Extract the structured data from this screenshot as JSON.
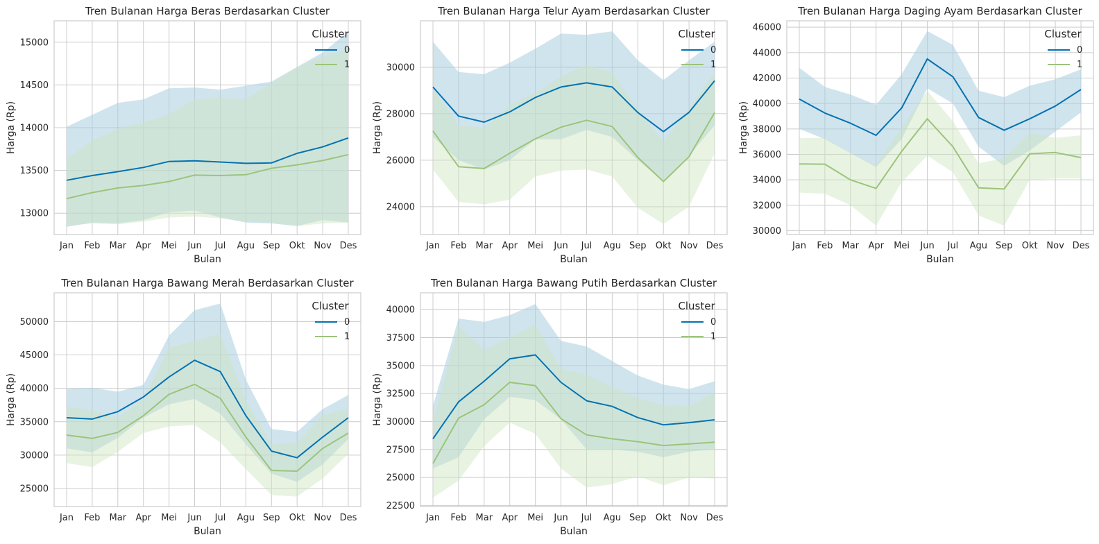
{
  "figure": {
    "background": "#ffffff",
    "plot_background": "#ffffff",
    "grid_color": "#cccccc",
    "spine_color": "#cccccc",
    "series_colors": [
      "#0072b2",
      "#9bc47b"
    ],
    "band_colors": [
      "#a9cde0",
      "#cfe5bf"
    ]
  },
  "chart_data": [
    {
      "type": "line",
      "title": "Tren Bulanan Harga Beras Berdasarkan Cluster",
      "xlabel": "Bulan",
      "ylabel": "Harga (Rp)",
      "categories": [
        "Jan",
        "Feb",
        "Mar",
        "Apr",
        "Mei",
        "Jun",
        "Jul",
        "Agu",
        "Sep",
        "Okt",
        "Nov",
        "Des"
      ],
      "ylim": [
        12750,
        15250
      ],
      "yticks": [
        13000,
        13500,
        14000,
        14500,
        15000
      ],
      "grid": true,
      "legend": {
        "title": "Cluster",
        "position": "top-right"
      },
      "series": [
        {
          "name": "0",
          "values": [
            13385,
            13440,
            13485,
            13535,
            13605,
            13612,
            13598,
            13583,
            13588,
            13700,
            13775,
            13880
          ],
          "ci_low": [
            12840,
            12890,
            12880,
            12920,
            13010,
            13030,
            12950,
            12890,
            12880,
            12850,
            12920,
            12890
          ],
          "ci_high": [
            14010,
            14150,
            14290,
            14330,
            14460,
            14470,
            14445,
            14490,
            14540,
            14710,
            14880,
            15120
          ]
        },
        {
          "name": "1",
          "values": [
            13170,
            13240,
            13295,
            13325,
            13370,
            13445,
            13440,
            13450,
            13525,
            13565,
            13615,
            13685
          ],
          "ci_low": [
            12850,
            12880,
            12870,
            12900,
            12950,
            12960,
            12940,
            12900,
            12890,
            12850,
            12880,
            12890
          ],
          "ci_high": [
            13640,
            13850,
            13990,
            14060,
            14160,
            14330,
            14350,
            14330,
            14520,
            14710,
            14840,
            14920
          ]
        }
      ]
    },
    {
      "type": "line",
      "title": "Tren Bulanan Harga Telur Ayam Berdasarkan Cluster",
      "xlabel": "Bulan",
      "ylabel": "Harga (Rp)",
      "categories": [
        "Jan",
        "Feb",
        "Mar",
        "Apr",
        "Mei",
        "Jun",
        "Jul",
        "Agu",
        "Sep",
        "Okt",
        "Nov",
        "Des"
      ],
      "ylim": [
        22800,
        32000
      ],
      "yticks": [
        24000,
        26000,
        28000,
        30000
      ],
      "grid": true,
      "legend": {
        "title": "Cluster",
        "position": "top-right"
      },
      "series": [
        {
          "name": "0",
          "values": [
            29150,
            27900,
            27640,
            28080,
            28700,
            29150,
            29330,
            29150,
            28050,
            27230,
            28060,
            29420
          ],
          "ci_low": [
            27000,
            26000,
            25600,
            26000,
            26900,
            26900,
            27300,
            27000,
            26000,
            25100,
            26200,
            27500
          ],
          "ci_high": [
            31100,
            29800,
            29700,
            30200,
            30800,
            31450,
            31400,
            31550,
            30300,
            29450,
            30300,
            31100
          ]
        },
        {
          "name": "1",
          "values": [
            27260,
            25720,
            25640,
            26300,
            26920,
            27420,
            27720,
            27450,
            26120,
            25080,
            26150,
            28050
          ],
          "ci_low": [
            25600,
            24200,
            24100,
            24300,
            25300,
            25550,
            25600,
            25300,
            23950,
            23250,
            24000,
            26300
          ],
          "ci_high": [
            29100,
            27500,
            27400,
            28400,
            28900,
            29600,
            30100,
            29800,
            28200,
            26800,
            28200,
            29800
          ]
        }
      ]
    },
    {
      "type": "line",
      "title": "Tren Bulanan Harga Daging Ayam Berdasarkan Cluster",
      "xlabel": "Bulan",
      "ylabel": "Harga (Rp)",
      "categories": [
        "Jan",
        "Feb",
        "Mar",
        "Apr",
        "Mei",
        "Jun",
        "Jul",
        "Agu",
        "Sep",
        "Okt",
        "Nov",
        "Des"
      ],
      "ylim": [
        29700,
        46500
      ],
      "yticks": [
        30000,
        32000,
        34000,
        36000,
        38000,
        40000,
        42000,
        44000,
        46000
      ],
      "grid": true,
      "legend": {
        "title": "Cluster",
        "position": "top-right"
      },
      "series": [
        {
          "name": "0",
          "values": [
            40350,
            39250,
            38450,
            37500,
            39650,
            43500,
            42100,
            38900,
            37900,
            38800,
            39800,
            41100
          ],
          "ci_low": [
            38000,
            37200,
            36100,
            35000,
            37200,
            41200,
            40000,
            36600,
            35100,
            36300,
            37800,
            39300
          ],
          "ci_high": [
            42800,
            41300,
            40700,
            39900,
            42300,
            45700,
            44600,
            41000,
            40500,
            41400,
            41900,
            42700
          ]
        },
        {
          "name": "1",
          "values": [
            35250,
            35230,
            34000,
            33320,
            36240,
            38800,
            36600,
            33370,
            33280,
            36050,
            36150,
            35750
          ],
          "ci_low": [
            33000,
            32900,
            32000,
            30400,
            33800,
            35900,
            34600,
            31200,
            30400,
            34000,
            34100,
            34100
          ],
          "ci_high": [
            37300,
            37300,
            36100,
            35200,
            38100,
            41000,
            38600,
            35300,
            35700,
            37700,
            37300,
            37500
          ]
        }
      ]
    },
    {
      "type": "line",
      "title": "Tren Bulanan Harga Bawang Merah Berdasarkan Cluster",
      "xlabel": "Bulan",
      "ylabel": "Harga (Rp)",
      "categories": [
        "Jan",
        "Feb",
        "Mar",
        "Apr",
        "Mei",
        "Jun",
        "Jul",
        "Agu",
        "Sep",
        "Okt",
        "Nov",
        "Des"
      ],
      "ylim": [
        22300,
        54300
      ],
      "yticks": [
        25000,
        30000,
        35000,
        40000,
        45000,
        50000
      ],
      "grid": true,
      "legend": {
        "title": "Cluster",
        "position": "top-right"
      },
      "series": [
        {
          "name": "0",
          "values": [
            35600,
            35400,
            36500,
            38700,
            41700,
            44200,
            42500,
            35900,
            30600,
            29600,
            32700,
            35600
          ],
          "ci_low": [
            31000,
            30400,
            32600,
            35600,
            37600,
            38400,
            36200,
            31600,
            27200,
            26000,
            28600,
            32400
          ],
          "ci_high": [
            39900,
            40100,
            39500,
            40500,
            47900,
            51700,
            52700,
            41300,
            33900,
            33500,
            36900,
            39000
          ]
        },
        {
          "name": "1",
          "values": [
            33000,
            32500,
            33400,
            35900,
            39100,
            40600,
            38500,
            32700,
            27700,
            27600,
            31000,
            33300
          ],
          "ci_low": [
            28800,
            28200,
            30500,
            33300,
            34300,
            34500,
            31900,
            27900,
            24000,
            23800,
            26500,
            30200
          ],
          "ci_high": [
            37300,
            36700,
            35600,
            38500,
            46100,
            47100,
            48200,
            38200,
            31600,
            31900,
            36000,
            37000
          ]
        }
      ]
    },
    {
      "type": "line",
      "title": "Tren Bulanan Harga Bawang Putih Berdasarkan Cluster",
      "xlabel": "Bulan",
      "ylabel": "Harga (Rp)",
      "categories": [
        "Jan",
        "Feb",
        "Mar",
        "Apr",
        "Mei",
        "Jun",
        "Jul",
        "Agu",
        "Sep",
        "Okt",
        "Nov",
        "Des"
      ],
      "ylim": [
        22400,
        41500
      ],
      "yticks": [
        22500,
        25000,
        27500,
        30000,
        32500,
        35000,
        37500,
        40000
      ],
      "grid": true,
      "legend": {
        "title": "Cluster",
        "position": "top-right"
      },
      "series": [
        {
          "name": "0",
          "values": [
            28450,
            31750,
            33600,
            35600,
            35950,
            33500,
            31850,
            31350,
            30350,
            29700,
            29900,
            30150
          ],
          "ci_low": [
            25800,
            26800,
            30200,
            32200,
            31900,
            30200,
            27500,
            27500,
            27300,
            26800,
            27300,
            27500
          ],
          "ci_high": [
            31400,
            39200,
            38900,
            39500,
            40500,
            37200,
            36700,
            35400,
            34100,
            33300,
            32900,
            33600
          ]
        },
        {
          "name": "1",
          "values": [
            26250,
            30300,
            31500,
            33500,
            33200,
            30250,
            28800,
            28450,
            28200,
            27850,
            28000,
            28150
          ],
          "ci_low": [
            23200,
            24700,
            27800,
            29900,
            28900,
            25800,
            24100,
            24400,
            25100,
            24300,
            25000,
            24900
          ],
          "ci_high": [
            30000,
            38500,
            36400,
            37500,
            38700,
            34700,
            34200,
            33100,
            32100,
            31500,
            31400,
            32600
          ]
        }
      ]
    }
  ]
}
